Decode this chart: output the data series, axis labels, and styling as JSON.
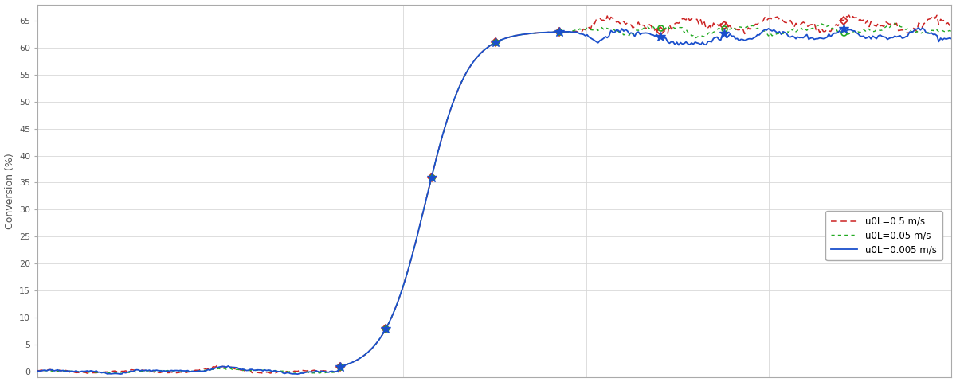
{
  "ylabel": "Conversion (%)",
  "yticks": [
    0,
    5,
    10,
    15,
    20,
    25,
    30,
    35,
    40,
    45,
    50,
    55,
    60,
    65
  ],
  "ylim": [
    -1,
    68
  ],
  "xlim": [
    0,
    1.0
  ],
  "background_color": "#ffffff",
  "grid_color": "#d8d8d8",
  "legend": [
    {
      "label": "u0L=0.005 m/s",
      "color": "#1a4fcc",
      "linestyle": "-",
      "marker": "*",
      "markersize": 9
    },
    {
      "label": "u0L=0.05 m/s",
      "color": "#22aa22",
      "linestyle": "--",
      "marker": "o",
      "markersize": 5
    },
    {
      "label": "u0L=0.5 m/s",
      "color": "#cc2222",
      "linestyle": "--",
      "marker": "D",
      "markersize": 5
    }
  ]
}
